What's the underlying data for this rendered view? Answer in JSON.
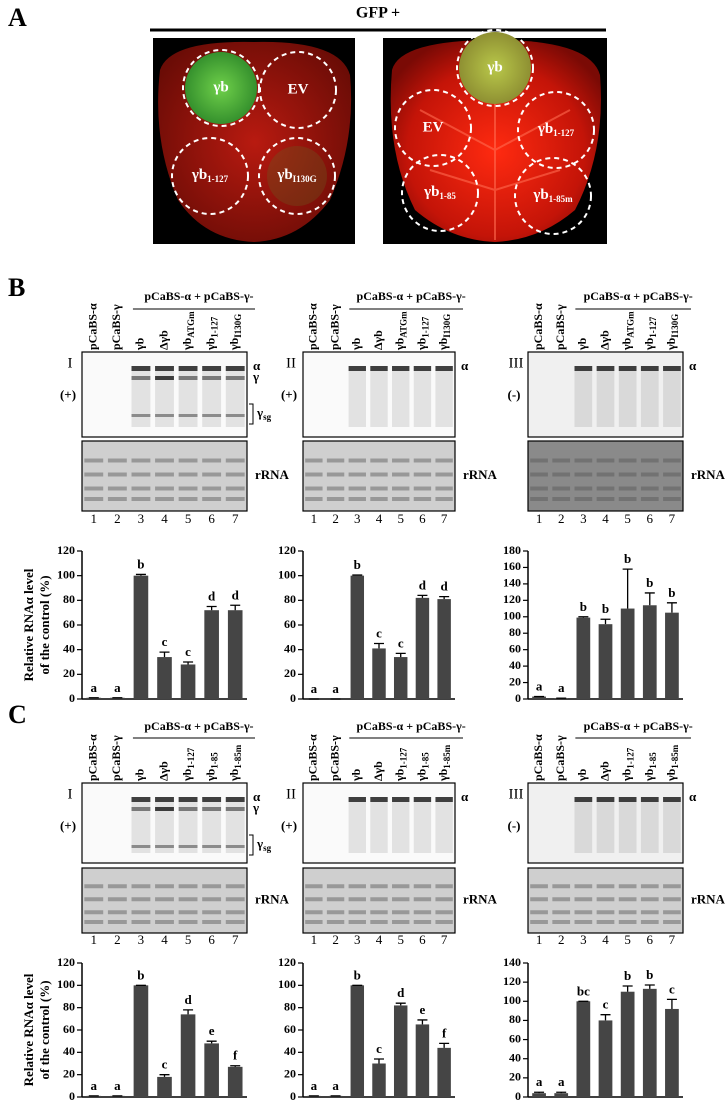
{
  "panel_a": {
    "letter": "A",
    "title": "GFP +",
    "left_leaf": [
      "γb",
      "EV",
      {
        "main": "γb",
        "sub": "1-127"
      },
      {
        "main": "γb",
        "sub": "I130G"
      }
    ],
    "right_leaf": [
      "γb",
      "EV",
      {
        "main": "γb",
        "sub": "1-127"
      },
      {
        "main": "γb",
        "sub": "1-85"
      },
      {
        "main": "γb",
        "sub": "1-85m"
      }
    ]
  },
  "panel_b": {
    "letter": "B",
    "columns": [
      {
        "numeral": "I",
        "sign": "(+)",
        "controls": [
          "pCaBS-α",
          "pCaBS-γ"
        ],
        "group": "pCaBS-α + pCaBS-γ-",
        "lanes": [
          "γb",
          "Δγb",
          {
            "main": "γb",
            "sub": "ATGm"
          },
          {
            "main": "γb",
            "sub": "1-127"
          },
          {
            "main": "γb",
            "sub": "I130G"
          }
        ],
        "bands": [
          "α",
          "γ",
          {
            "main": "γ",
            "sub": "sg"
          }
        ],
        "rrna": "rRNA",
        "lane_numbers": [
          1,
          2,
          3,
          4,
          5,
          6,
          7
        ]
      },
      {
        "numeral": "II",
        "sign": "(+)",
        "controls": [
          "pCaBS-α",
          "pCaBS-γ"
        ],
        "group": "pCaBS-α + pCaBS-γ-",
        "lanes": [
          "γb",
          "Δγb",
          {
            "main": "γb",
            "sub": "ATGm"
          },
          {
            "main": "γb",
            "sub": "1-127"
          },
          {
            "main": "γb",
            "sub": "I130G"
          }
        ],
        "bands": [
          "α"
        ],
        "rrna": "rRNA",
        "lane_numbers": [
          1,
          2,
          3,
          4,
          5,
          6,
          7
        ]
      },
      {
        "numeral": "III",
        "sign": "(-)",
        "controls": [
          "pCaBS-α",
          "pCaBS-γ"
        ],
        "group": "pCaBS-α + pCaBS-γ-",
        "lanes": [
          "γb",
          "Δγb",
          {
            "main": "γb",
            "sub": "ATGm"
          },
          {
            "main": "γb",
            "sub": "1-127"
          },
          {
            "main": "γb",
            "sub": "I130G"
          }
        ],
        "bands": [
          "α"
        ],
        "rrna": "rRNA",
        "lane_numbers": [
          1,
          2,
          3,
          4,
          5,
          6,
          7
        ]
      }
    ]
  },
  "panel_c": {
    "letter": "C",
    "columns": [
      {
        "numeral": "I",
        "sign": "(+)",
        "controls": [
          "pCaBS-α",
          "pCaBS-γ"
        ],
        "group": "pCaBS-α + pCaBS-γ-",
        "lanes": [
          "γb",
          "Δγb",
          {
            "main": "γb",
            "sub": "1-127"
          },
          {
            "main": "γb",
            "sub": "1-85"
          },
          {
            "main": "γb",
            "sub": "1-85m"
          }
        ],
        "bands": [
          "α",
          "γ",
          {
            "main": "γ",
            "sub": "sg"
          }
        ],
        "rrna": "rRNA",
        "lane_numbers": [
          1,
          2,
          3,
          4,
          5,
          6,
          7
        ]
      },
      {
        "numeral": "II",
        "sign": "(+)",
        "controls": [
          "pCaBS-α",
          "pCaBS-γ"
        ],
        "group": "pCaBS-α + pCaBS-γ-",
        "lanes": [
          "γb",
          "Δγb",
          {
            "main": "γb",
            "sub": "1-127"
          },
          {
            "main": "γb",
            "sub": "1-85"
          },
          {
            "main": "γb",
            "sub": "1-85m"
          }
        ],
        "bands": [
          "α"
        ],
        "rrna": "rRNA",
        "lane_numbers": [
          1,
          2,
          3,
          4,
          5,
          6,
          7
        ]
      },
      {
        "numeral": "III",
        "sign": "(-)",
        "controls": [
          "pCaBS-α",
          "pCaBS-γ"
        ],
        "group": "pCaBS-α + pCaBS-γ-",
        "lanes": [
          "γb",
          "Δγb",
          {
            "main": "γb",
            "sub": "1-127"
          },
          {
            "main": "γb",
            "sub": "1-85"
          },
          {
            "main": "γb",
            "sub": "1-85m"
          }
        ],
        "bands": [
          "α"
        ],
        "rrna": "rRNA",
        "lane_numbers": [
          1,
          2,
          3,
          4,
          5,
          6,
          7
        ]
      }
    ]
  },
  "chart_data": [
    {
      "type": "bar",
      "ylabel": [
        "Relative RNAα level",
        "of the control (%)"
      ],
      "color": "#454545",
      "values": [
        1,
        1,
        100,
        34,
        28,
        72,
        72
      ],
      "errors": [
        0,
        0,
        1,
        4,
        2,
        3,
        4
      ],
      "letters": [
        "a",
        "a",
        "b",
        "c",
        "c",
        "d",
        "d"
      ],
      "ylim": [
        0,
        120
      ],
      "yticks": [
        0,
        20,
        40,
        60,
        80,
        100,
        120
      ]
    },
    {
      "type": "bar",
      "color": "#454545",
      "values": [
        0,
        0,
        100,
        41,
        34,
        82,
        81
      ],
      "errors": [
        0,
        0,
        0.5,
        4,
        3,
        2,
        2
      ],
      "letters": [
        "a",
        "a",
        "b",
        "c",
        "c",
        "d",
        "d"
      ],
      "ylim": [
        0,
        120
      ],
      "yticks": [
        0,
        20,
        40,
        60,
        80,
        100,
        120
      ]
    },
    {
      "type": "bar",
      "color": "#454545",
      "values": [
        3,
        1,
        99,
        91,
        110,
        114,
        105
      ],
      "errors": [
        0,
        0,
        1,
        6,
        48,
        15,
        12
      ],
      "letters": [
        "a",
        "a",
        "b",
        "b",
        "b",
        "b",
        "b"
      ],
      "ylim": [
        0,
        180
      ],
      "yticks": [
        0,
        20,
        40,
        60,
        80,
        100,
        120,
        140,
        160,
        180
      ]
    },
    {
      "type": "bar",
      "ylabel": [
        "Relative RNAα level",
        "of the control (%)"
      ],
      "color": "#454545",
      "values": [
        1,
        1,
        100,
        18,
        74,
        48,
        27
      ],
      "errors": [
        0,
        0,
        0,
        2,
        4,
        2,
        1
      ],
      "letters": [
        "a",
        "a",
        "b",
        "c",
        "d",
        "e",
        "f"
      ],
      "ylim": [
        0,
        120
      ],
      "yticks": [
        0,
        20,
        40,
        60,
        80,
        100,
        120
      ]
    },
    {
      "type": "bar",
      "color": "#454545",
      "values": [
        1,
        1,
        100,
        30,
        82,
        65,
        44
      ],
      "errors": [
        0,
        0,
        0,
        4,
        2,
        4,
        4
      ],
      "letters": [
        "a",
        "a",
        "b",
        "c",
        "d",
        "e",
        "f"
      ],
      "ylim": [
        0,
        120
      ],
      "yticks": [
        0,
        20,
        40,
        60,
        80,
        100,
        120
      ]
    },
    {
      "type": "bar",
      "color": "#454545",
      "values": [
        4,
        4,
        100,
        80,
        110,
        113,
        92
      ],
      "errors": [
        1,
        1,
        0,
        6,
        6,
        4,
        10
      ],
      "letters": [
        "a",
        "a",
        "bc",
        "c",
        "b",
        "b",
        "c"
      ],
      "ylim": [
        0,
        140
      ],
      "yticks": [
        0,
        20,
        40,
        60,
        80,
        100,
        120,
        140
      ]
    }
  ]
}
